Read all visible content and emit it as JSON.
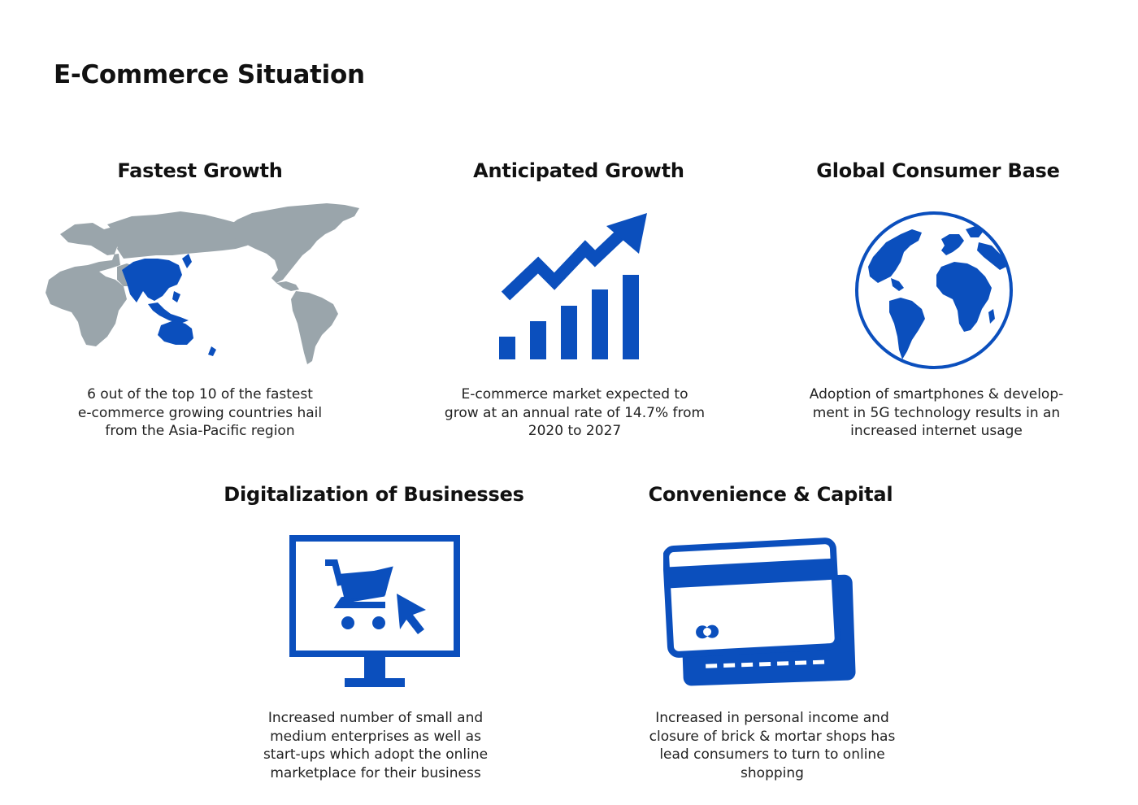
{
  "page": {
    "title": "E-Commerce Situation"
  },
  "colors": {
    "accent_blue": "#0b4fbd",
    "map_gray": "#9aa5ab",
    "text": "#222222"
  },
  "cards": [
    {
      "title": "Fastest Growth",
      "icon": "world-map-icon",
      "text": [
        "6 out of the top 10 of the fastest",
        "e-commerce growing countries hail",
        "from the Asia-Pacific region"
      ]
    },
    {
      "title": "Anticipated Growth",
      "icon": "growth-chart-icon",
      "text": [
        "E-commerce market expected to",
        "grow at an annual rate of 14.7% from",
        "2020 to 2027"
      ]
    },
    {
      "title": "Global Consumer Base",
      "icon": "globe-icon",
      "text": [
        "Adoption of smartphones & develop-",
        "ment in 5G technology results in an",
        "increased internet usage"
      ]
    },
    {
      "title": "Digitalization of Businesses",
      "icon": "online-shopping-monitor-icon",
      "text": [
        "Increased number of small and",
        "medium enterprises as well as",
        "start-ups which adopt the online",
        "marketplace for their business"
      ]
    },
    {
      "title": "Convenience & Capital",
      "icon": "credit-cards-icon",
      "text": [
        "Increased in personal income and",
        "closure of brick & mortar shops has",
        "lead consumers to turn to online",
        "shopping"
      ]
    }
  ]
}
